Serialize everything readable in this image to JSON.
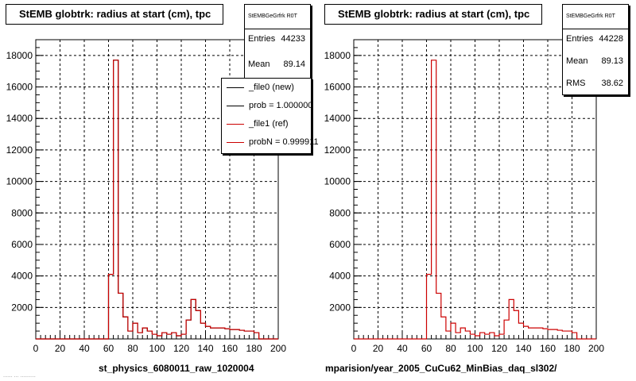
{
  "colors": {
    "new": "#000000",
    "ref": "#cc0000",
    "grid": "#000000",
    "frame": "#000000"
  },
  "left_pad": {
    "title": "StEMB globtrk: radius at start (cm), tpc",
    "stats": {
      "header": "StEMBGeGrfrk R0T",
      "entries_label": "Entries",
      "entries_value": "44233",
      "mean_label": "Mean",
      "mean_value": "89.14"
    },
    "legend": {
      "entries": [
        {
          "label": "_file0 (new)",
          "color": "#000000"
        },
        {
          "label": "prob = 1.000000",
          "color": "#000000"
        },
        {
          "label": "_file1 (ref)",
          "color": "#cc0000"
        },
        {
          "label": "probN = 0.999911",
          "color": "#cc0000"
        }
      ]
    },
    "file_label": "st_physics_6080011_raw_1020004"
  },
  "right_pad": {
    "title": "StEMB globtrk: radius at start (cm), tpc",
    "stats": {
      "header": "StEMBGeGrfrk R0T",
      "entries_label": "Entries",
      "entries_value": "44228",
      "mean_label": "Mean",
      "mean_value": "89.13",
      "rms_label": "RMS",
      "rms_value": "38.62"
    },
    "file_label": "mparision/year_2005_CuCu62_MinBias_daq_sl302/"
  },
  "footer": "...... ... ..........",
  "chart_data": [
    {
      "type": "histogram",
      "title": "StEMB globtrk: radius at start (cm), tpc",
      "xlabel": "st_physics_6080011_raw_1020004",
      "ylabel": "",
      "xlim": [
        0,
        200
      ],
      "ylim": [
        0,
        19000
      ],
      "grid": true,
      "legend_position": "top-right",
      "x_ticks": [
        0,
        20,
        40,
        60,
        80,
        100,
        120,
        140,
        160,
        180,
        200
      ],
      "y_ticks": [
        2000,
        4000,
        6000,
        8000,
        10000,
        12000,
        14000,
        16000,
        18000
      ],
      "bin_edges": [
        0,
        4,
        8,
        12,
        16,
        20,
        24,
        28,
        32,
        36,
        40,
        44,
        48,
        52,
        56,
        60,
        64,
        68,
        72,
        76,
        80,
        84,
        88,
        92,
        96,
        100,
        104,
        108,
        112,
        116,
        120,
        124,
        128,
        132,
        136,
        140,
        144,
        148,
        152,
        156,
        160,
        164,
        168,
        172,
        176,
        180,
        184,
        188,
        192,
        196,
        200
      ],
      "series": [
        {
          "name": "_file0 (new)",
          "color": "#000000",
          "values": [
            0,
            0,
            0,
            0,
            0,
            0,
            0,
            0,
            0,
            0,
            0,
            0,
            0,
            0,
            0,
            4100,
            17700,
            2900,
            1400,
            500,
            1000,
            400,
            700,
            500,
            300,
            200,
            400,
            300,
            400,
            200,
            300,
            1200,
            2500,
            1800,
            1000,
            800,
            700,
            700,
            700,
            650,
            600,
            600,
            550,
            500,
            500,
            400,
            0,
            0,
            0,
            0
          ]
        },
        {
          "name": "_file1 (ref)",
          "color": "#cc0000",
          "values": [
            0,
            0,
            0,
            0,
            0,
            0,
            0,
            0,
            0,
            0,
            0,
            0,
            0,
            0,
            0,
            4100,
            17700,
            2900,
            1400,
            500,
            1000,
            400,
            700,
            500,
            300,
            200,
            400,
            300,
            400,
            200,
            300,
            1200,
            2500,
            1800,
            1000,
            800,
            700,
            700,
            700,
            650,
            600,
            600,
            550,
            500,
            500,
            400,
            0,
            0,
            0,
            0
          ]
        }
      ]
    },
    {
      "type": "histogram",
      "title": "StEMB globtrk: radius at start (cm), tpc",
      "xlabel": "mparision/year_2005_CuCu62_MinBias_daq_sl302/",
      "ylabel": "",
      "xlim": [
        0,
        200
      ],
      "ylim": [
        0,
        19000
      ],
      "grid": true,
      "x_ticks": [
        0,
        20,
        40,
        60,
        80,
        100,
        120,
        140,
        160,
        180,
        200
      ],
      "y_ticks": [
        2000,
        4000,
        6000,
        8000,
        10000,
        12000,
        14000,
        16000,
        18000
      ],
      "bin_edges": [
        0,
        4,
        8,
        12,
        16,
        20,
        24,
        28,
        32,
        36,
        40,
        44,
        48,
        52,
        56,
        60,
        64,
        68,
        72,
        76,
        80,
        84,
        88,
        92,
        96,
        100,
        104,
        108,
        112,
        116,
        120,
        124,
        128,
        132,
        136,
        140,
        144,
        148,
        152,
        156,
        160,
        164,
        168,
        172,
        176,
        180,
        184,
        188,
        192,
        196,
        200
      ],
      "series": [
        {
          "name": "_file1 (ref)",
          "color": "#cc0000",
          "values": [
            0,
            0,
            0,
            0,
            0,
            0,
            0,
            0,
            0,
            0,
            0,
            0,
            0,
            0,
            0,
            4100,
            17700,
            2900,
            1400,
            500,
            1000,
            400,
            700,
            500,
            300,
            200,
            400,
            300,
            400,
            200,
            300,
            1200,
            2500,
            1800,
            1000,
            800,
            700,
            700,
            700,
            650,
            600,
            600,
            550,
            500,
            500,
            400,
            0,
            0,
            0,
            0
          ]
        }
      ]
    }
  ]
}
